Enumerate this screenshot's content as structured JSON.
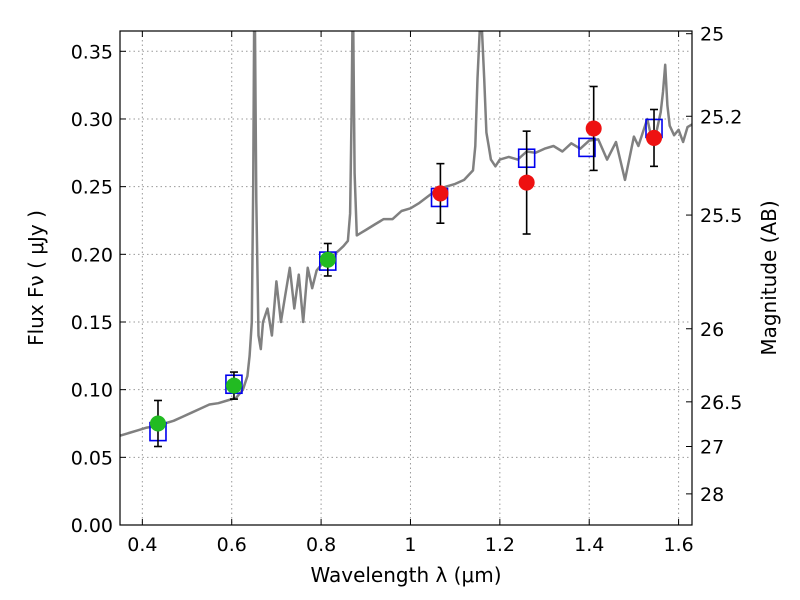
{
  "chart_data": {
    "type": "scatter",
    "title": "",
    "xlabel": "Wavelength  λ (μm)",
    "ylabel": "Flux  Fν  ( μJy )",
    "y2label": "Magnitude (AB)",
    "xlim": [
      0.35,
      1.63
    ],
    "ylim": [
      0.0,
      0.365
    ],
    "grid": true,
    "x_ticks": [
      0.4,
      0.6,
      0.8,
      1.0,
      1.2,
      1.4,
      1.6
    ],
    "x_tick_labels": [
      "0.4",
      "0.6",
      "0.8",
      "1",
      "1.2",
      "1.4",
      "1.6"
    ],
    "y_ticks": [
      0.0,
      0.05,
      0.1,
      0.15,
      0.2,
      0.25,
      0.3,
      0.35
    ],
    "y_tick_labels": [
      "0.00",
      "0.05",
      "0.10",
      "0.15",
      "0.20",
      "0.25",
      "0.30",
      "0.35"
    ],
    "y2_ticks": [
      {
        "flux": 0.363,
        "label": "25"
      },
      {
        "flux": 0.302,
        "label": "25.2"
      },
      {
        "flux": 0.229,
        "label": "25.5"
      },
      {
        "flux": 0.145,
        "label": "26"
      },
      {
        "flux": 0.091,
        "label": "26.5"
      },
      {
        "flux": 0.058,
        "label": "27"
      },
      {
        "flux": 0.023,
        "label": "28"
      }
    ],
    "colors": {
      "spectrum": "#808080",
      "model": "#0000ee",
      "obs_optical": "#22bb22",
      "obs_nir": "#ee1111",
      "errorbar": "#000000",
      "grid": "#9a9a9a"
    },
    "series": [
      {
        "role": "spectrum",
        "x": [
          0.35,
          0.37,
          0.39,
          0.41,
          0.43,
          0.45,
          0.47,
          0.49,
          0.51,
          0.53,
          0.55,
          0.57,
          0.59,
          0.61,
          0.625,
          0.635,
          0.64,
          0.645,
          0.648,
          0.65,
          0.652,
          0.655,
          0.66,
          0.665,
          0.67,
          0.68,
          0.69,
          0.7,
          0.71,
          0.72,
          0.73,
          0.74,
          0.75,
          0.76,
          0.77,
          0.78,
          0.79,
          0.8,
          0.81,
          0.82,
          0.83,
          0.84,
          0.85,
          0.86,
          0.865,
          0.868,
          0.87,
          0.872,
          0.875,
          0.88,
          0.89,
          0.9,
          0.92,
          0.94,
          0.96,
          0.98,
          1.0,
          1.02,
          1.04,
          1.06,
          1.08,
          1.1,
          1.12,
          1.14,
          1.145,
          1.15,
          1.155,
          1.16,
          1.165,
          1.17,
          1.175,
          1.18,
          1.19,
          1.2,
          1.22,
          1.24,
          1.26,
          1.28,
          1.3,
          1.32,
          1.34,
          1.36,
          1.38,
          1.4,
          1.42,
          1.44,
          1.46,
          1.48,
          1.5,
          1.51,
          1.52,
          1.53,
          1.54,
          1.55,
          1.56,
          1.565,
          1.57,
          1.575,
          1.58,
          1.59,
          1.6,
          1.61,
          1.62,
          1.63
        ],
        "y": [
          0.066,
          0.068,
          0.07,
          0.072,
          0.073,
          0.075,
          0.077,
          0.08,
          0.083,
          0.086,
          0.089,
          0.09,
          0.092,
          0.094,
          0.1,
          0.11,
          0.125,
          0.15,
          0.25,
          0.365,
          0.365,
          0.24,
          0.14,
          0.13,
          0.15,
          0.16,
          0.14,
          0.18,
          0.15,
          0.17,
          0.19,
          0.16,
          0.185,
          0.15,
          0.19,
          0.175,
          0.188,
          0.192,
          0.195,
          0.198,
          0.2,
          0.203,
          0.206,
          0.21,
          0.23,
          0.3,
          0.365,
          0.365,
          0.26,
          0.214,
          0.216,
          0.218,
          0.222,
          0.226,
          0.226,
          0.232,
          0.234,
          0.238,
          0.243,
          0.248,
          0.25,
          0.252,
          0.255,
          0.262,
          0.28,
          0.33,
          0.365,
          0.365,
          0.33,
          0.29,
          0.28,
          0.27,
          0.265,
          0.27,
          0.272,
          0.27,
          0.276,
          0.275,
          0.278,
          0.28,
          0.276,
          0.282,
          0.278,
          0.284,
          0.285,
          0.27,
          0.283,
          0.255,
          0.287,
          0.28,
          0.29,
          0.3,
          0.285,
          0.29,
          0.305,
          0.32,
          0.34,
          0.31,
          0.295,
          0.288,
          0.292,
          0.283,
          0.294,
          0.296
        ]
      },
      {
        "role": "model",
        "x": [
          0.435,
          0.605,
          0.815,
          1.065,
          1.26,
          1.395,
          1.545
        ],
        "y": [
          0.069,
          0.104,
          0.195,
          0.242,
          0.271,
          0.279,
          0.293
        ]
      },
      {
        "role": "observed",
        "x": [
          0.435,
          0.605,
          0.815,
          1.067,
          1.26,
          1.41,
          1.545
        ],
        "y": [
          0.075,
          0.103,
          0.196,
          0.245,
          0.253,
          0.293,
          0.286
        ],
        "yerr": [
          0.017,
          0.01,
          0.012,
          0.022,
          0.038,
          0.031,
          0.021
        ],
        "band": [
          "optical",
          "optical",
          "optical",
          "nir",
          "nir",
          "nir",
          "nir"
        ]
      }
    ]
  }
}
